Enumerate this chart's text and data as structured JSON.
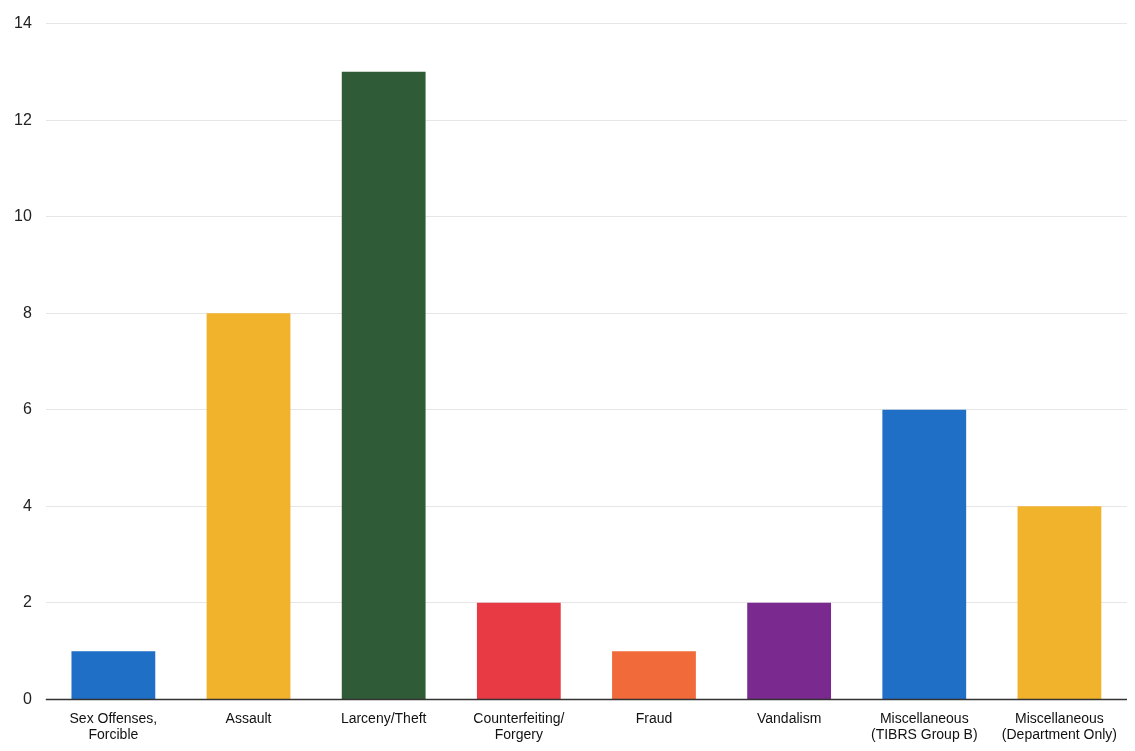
{
  "chart_data": {
    "type": "bar",
    "categories": [
      "Sex Offenses, Forcible",
      "Assault",
      "Larceny/Theft",
      "Counterfeiting/ Forgery",
      "Fraud",
      "Vandalism",
      "Miscellaneous (TIBRS Group B)",
      "Miscellaneous (Department Only)"
    ],
    "values": [
      1,
      8,
      13,
      2,
      1,
      2,
      6,
      4
    ],
    "colors": [
      "#1f6fc6",
      "#f1b22c",
      "#2f5b36",
      "#e83a44",
      "#f06a3a",
      "#7a2a8e",
      "#1f6fc6",
      "#f1b22c"
    ],
    "ylim": [
      0,
      14
    ],
    "yticks": [
      0,
      2,
      4,
      6,
      8,
      10,
      12,
      14
    ],
    "grid": "y",
    "legend": false
  }
}
